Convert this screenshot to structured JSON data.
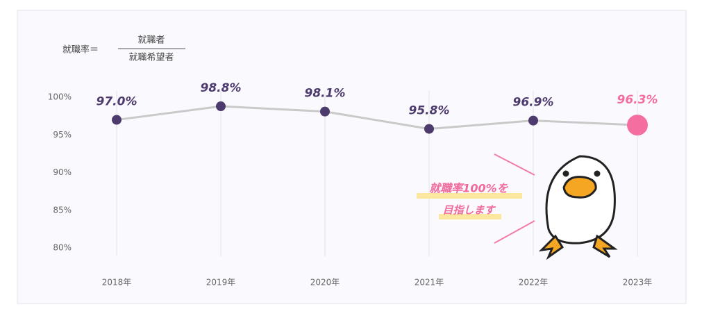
{
  "chart_data": {
    "type": "line",
    "formula": {
      "left": "就職率＝",
      "numerator": "就職者",
      "denominator": "就職希望者"
    },
    "categories": [
      "2018年",
      "2019年",
      "2020年",
      "2021年",
      "2022年",
      "2023年"
    ],
    "series": [
      {
        "color": "#4e3b6e",
        "highlight_color": "#f46fa0",
        "line_color": "#c9c9c9",
        "values": [
          97.0,
          98.8,
          98.1,
          95.8,
          96.9,
          96.3
        ],
        "value_labels": [
          "97.0%",
          "98.8%",
          "98.1%",
          "95.8%",
          "96.9%",
          "96.3%"
        ]
      }
    ],
    "ylim": [
      80,
      100
    ],
    "yticks": [
      {
        "value": 100,
        "label": "100%"
      },
      {
        "value": 95,
        "label": "95%"
      },
      {
        "value": 90,
        "label": "90%"
      },
      {
        "value": 85,
        "label": "85%"
      },
      {
        "value": 80,
        "label": "80%"
      }
    ],
    "grid": true,
    "annotation": [
      "就職率100%を",
      "目指します"
    ]
  }
}
